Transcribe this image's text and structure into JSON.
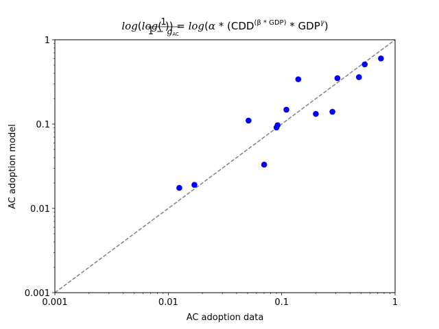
{
  "chart_data": {
    "type": "scatter",
    "title": "log(log(1/(1 − g_AC))) = log(α * (CDD^(β * GDP) * GDP^γ)",
    "title_parts": {
      "log1": "log",
      "open1": "(",
      "log2": "log",
      "open2": "(",
      "frac_num": "1",
      "frac_den_prefix": "1 − ",
      "frac_den_var": "g",
      "frac_den_sub": "AC",
      "close1": "))",
      "eq": " = ",
      "log3": "log",
      "open3": "(",
      "alpha": "α",
      "star1": " * (",
      "cdd": "CDD",
      "exp_beta": "(β * GDP)",
      "star2": " * ",
      "gdp": "GDP",
      "exp_gamma": "γ",
      "close2": ")"
    },
    "xlabel": "AC adoption data",
    "ylabel": "AC adoption model",
    "xscale": "log",
    "yscale": "log",
    "xlim": [
      0.001,
      1
    ],
    "ylim": [
      0.001,
      1
    ],
    "x_ticks": [
      0.001,
      0.01,
      0.1,
      1
    ],
    "x_tick_labels": [
      "0.001",
      "0.01",
      "0.1",
      "1"
    ],
    "y_ticks": [
      0.001,
      0.01,
      0.1,
      1
    ],
    "y_tick_labels": [
      "0.001",
      "0.01",
      "0.1",
      "1"
    ],
    "grid": false,
    "reference_line": {
      "style": "dashed",
      "color": "#808080",
      "from": [
        0.001,
        0.001
      ],
      "to": [
        1,
        1
      ]
    },
    "marker_color": "#0000ff",
    "points": [
      {
        "x": 0.0125,
        "y": 0.0175
      },
      {
        "x": 0.017,
        "y": 0.019
      },
      {
        "x": 0.051,
        "y": 0.11
      },
      {
        "x": 0.07,
        "y": 0.033
      },
      {
        "x": 0.09,
        "y": 0.091
      },
      {
        "x": 0.092,
        "y": 0.097
      },
      {
        "x": 0.11,
        "y": 0.148
      },
      {
        "x": 0.14,
        "y": 0.34
      },
      {
        "x": 0.2,
        "y": 0.132
      },
      {
        "x": 0.28,
        "y": 0.14
      },
      {
        "x": 0.31,
        "y": 0.35
      },
      {
        "x": 0.48,
        "y": 0.36
      },
      {
        "x": 0.54,
        "y": 0.51
      },
      {
        "x": 0.75,
        "y": 0.6
      }
    ]
  }
}
